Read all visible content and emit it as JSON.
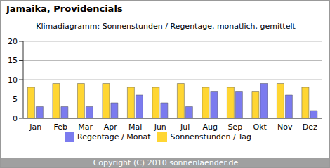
{
  "chart_data": {
    "type": "bar",
    "title": "Jamaika, Providencials",
    "subtitle": "Klimadiagramm: Sonnenstunden / Regentage, monatlich, gemittelt",
    "annotations": [
      "Copyright (C) 2010 sonnenlaender.de"
    ],
    "categories": [
      "Jan",
      "Feb",
      "Mar",
      "Apr",
      "Mai",
      "Jun",
      "Jul",
      "Aug",
      "Sep",
      "Okt",
      "Nov",
      "Dez"
    ],
    "series": [
      {
        "name": "Sonnenstunden / Tag",
        "color": "#ffd633",
        "values": [
          8,
          9,
          9,
          9,
          8,
          8,
          9,
          8,
          8,
          7,
          9,
          8
        ]
      },
      {
        "name": "Regentage / Monat",
        "color": "#7b7bef",
        "values": [
          3,
          3,
          3,
          4,
          6,
          4,
          3,
          7,
          7,
          9,
          6,
          2
        ]
      }
    ],
    "ylim": [
      0,
      20
    ],
    "yticks": [
      0,
      5,
      10,
      15,
      20
    ],
    "grid": true,
    "legend": "bottom"
  }
}
